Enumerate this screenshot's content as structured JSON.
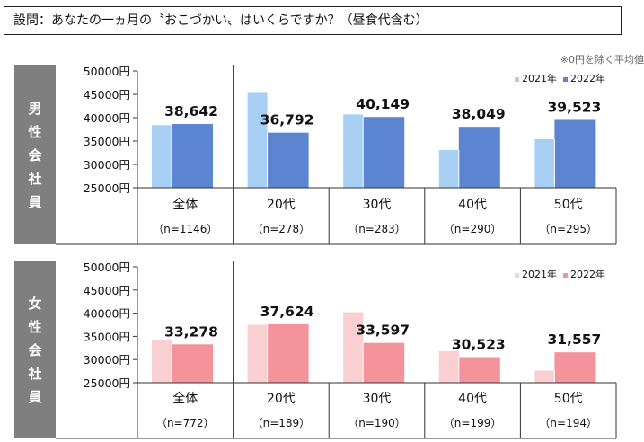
{
  "question": "設問：あなたの一ヵ月の〝おこづかい〟はいくらですか？（昼食代含む）",
  "note": "※0円を除く平均値",
  "colors": {
    "male_2021": "#A7D0F4",
    "male_2022": "#5B84D1",
    "female_2021": "#F9CFD2",
    "female_2022": "#F4939B",
    "side_label_bg": "#7F7F7F"
  },
  "chart_data": [
    {
      "type": "bar",
      "group_label": "男性会社員",
      "categories": [
        "全体",
        "20代",
        "30代",
        "40代",
        "50代"
      ],
      "n_labels": [
        "（n=1146）",
        "（n=278）",
        "（n=283）",
        "（n=290）",
        "（n=295）"
      ],
      "series": [
        {
          "name": "2021年",
          "values": [
            38400,
            45500,
            40700,
            33100,
            35400
          ]
        },
        {
          "name": "2022年",
          "values": [
            38642,
            36792,
            40149,
            38049,
            39523
          ]
        }
      ],
      "value_labels": [
        "38,642",
        "36,792",
        "40,149",
        "38,049",
        "39,523"
      ],
      "yticks": [
        "50000円",
        "45000円",
        "40000円",
        "35000円",
        "30000円",
        "25000円"
      ],
      "ylim": [
        25000,
        50000
      ],
      "legend_position": "top-right"
    },
    {
      "type": "bar",
      "group_label": "女性会社員",
      "categories": [
        "全体",
        "20代",
        "30代",
        "40代",
        "50代"
      ],
      "n_labels": [
        "（n=772）",
        "（n=189）",
        "（n=190）",
        "（n=199）",
        "（n=194）"
      ],
      "series": [
        {
          "name": "2021年",
          "values": [
            34200,
            37500,
            40200,
            31800,
            27600
          ]
        },
        {
          "name": "2022年",
          "values": [
            33278,
            37624,
            33597,
            30523,
            31557
          ]
        }
      ],
      "value_labels": [
        "33,278",
        "37,624",
        "33,597",
        "30,523",
        "31,557"
      ],
      "yticks": [
        "50000円",
        "45000円",
        "40000円",
        "35000円",
        "30000円",
        "25000円"
      ],
      "ylim": [
        25000,
        50000
      ],
      "legend_position": "top-right"
    }
  ]
}
